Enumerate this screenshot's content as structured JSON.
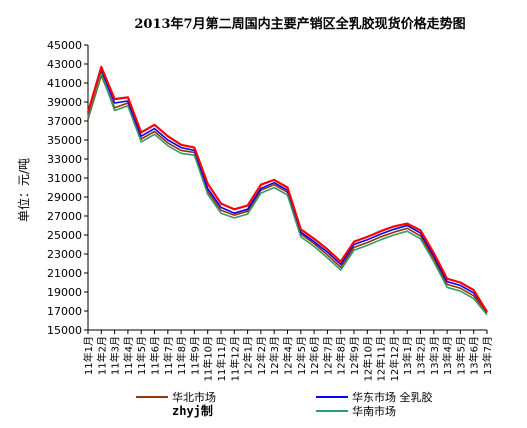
{
  "chart_data": {
    "type": "line",
    "title": "2013年7月第二周国内主要产销区全乳胶现货价格走势图",
    "ylabel": "单位：元/吨",
    "xlabel": "",
    "ylim": [
      15000,
      45000
    ],
    "yticks": [
      15000,
      17000,
      19000,
      21000,
      23000,
      25000,
      27000,
      29000,
      31000,
      33000,
      35000,
      37000,
      39000,
      41000,
      43000,
      45000
    ],
    "x": [
      "11年1月",
      "11年2月",
      "11年3月",
      "11年4月",
      "11年5月",
      "11年6月",
      "11年7月",
      "11年8月",
      "11年9月",
      "11年10月",
      "11年11月",
      "11年12月",
      "12年1月",
      "12年2月",
      "12年3月",
      "12年4月",
      "12年5月",
      "12年6月",
      "12年7月",
      "12年8月",
      "12年9月",
      "12年10月",
      "12年11月",
      "12年12月",
      "13年1月",
      "13年2月",
      "13年3月",
      "13年4月",
      "13年5月",
      "13年6月",
      "13年7月"
    ],
    "grid": false,
    "legend_position": "bottom",
    "series": [
      {
        "name": "华北市场",
        "color": "#993300",
        "values": [
          37200,
          41800,
          38400,
          38900,
          35100,
          35900,
          34700,
          33900,
          33700,
          29600,
          27600,
          27100,
          27500,
          29700,
          30300,
          29500,
          25100,
          24100,
          22900,
          21600,
          23700,
          24200,
          24800,
          25300,
          25700,
          24900,
          22500,
          19800,
          19400,
          18600,
          16800
        ]
      },
      {
        "name": "华东市场 全乳胶",
        "color": "#0000ff",
        "values": [
          37600,
          42300,
          38900,
          39100,
          35400,
          36200,
          35000,
          34200,
          33900,
          29900,
          27900,
          27300,
          27700,
          29900,
          30500,
          29700,
          25300,
          24300,
          23200,
          21900,
          24000,
          24500,
          25100,
          25600,
          26000,
          25200,
          22800,
          20100,
          19700,
          18900,
          17000
        ]
      },
      {
        "name": "华南市场",
        "color": "#339966",
        "values": [
          37400,
          42000,
          38100,
          38600,
          34800,
          35600,
          34400,
          33600,
          33400,
          29300,
          27300,
          26800,
          27200,
          29400,
          30000,
          29200,
          24800,
          23800,
          22600,
          21300,
          23400,
          23900,
          24500,
          25000,
          25400,
          24600,
          22200,
          19500,
          19100,
          18300,
          16600
        ]
      },
      {
        "name": "",
        "color": "#ff0000",
        "values": [
          37900,
          42700,
          39300,
          39500,
          35800,
          36600,
          35400,
          34500,
          34200,
          30400,
          28300,
          27700,
          28100,
          30300,
          30800,
          30000,
          25600,
          24600,
          23500,
          22200,
          24300,
          24800,
          25400,
          25900,
          26200,
          25500,
          23100,
          20400,
          20000,
          19200,
          16900
        ]
      }
    ]
  },
  "legend": {
    "items": [
      {
        "label": "华北市场",
        "color": "#993300"
      },
      {
        "label": "华东市场 全乳胶",
        "color": "#0000ff"
      },
      {
        "label": "",
        "color": "#ffffff"
      },
      {
        "label": "华南市场",
        "color": "#339966"
      }
    ],
    "watermark": "zhyj制"
  }
}
